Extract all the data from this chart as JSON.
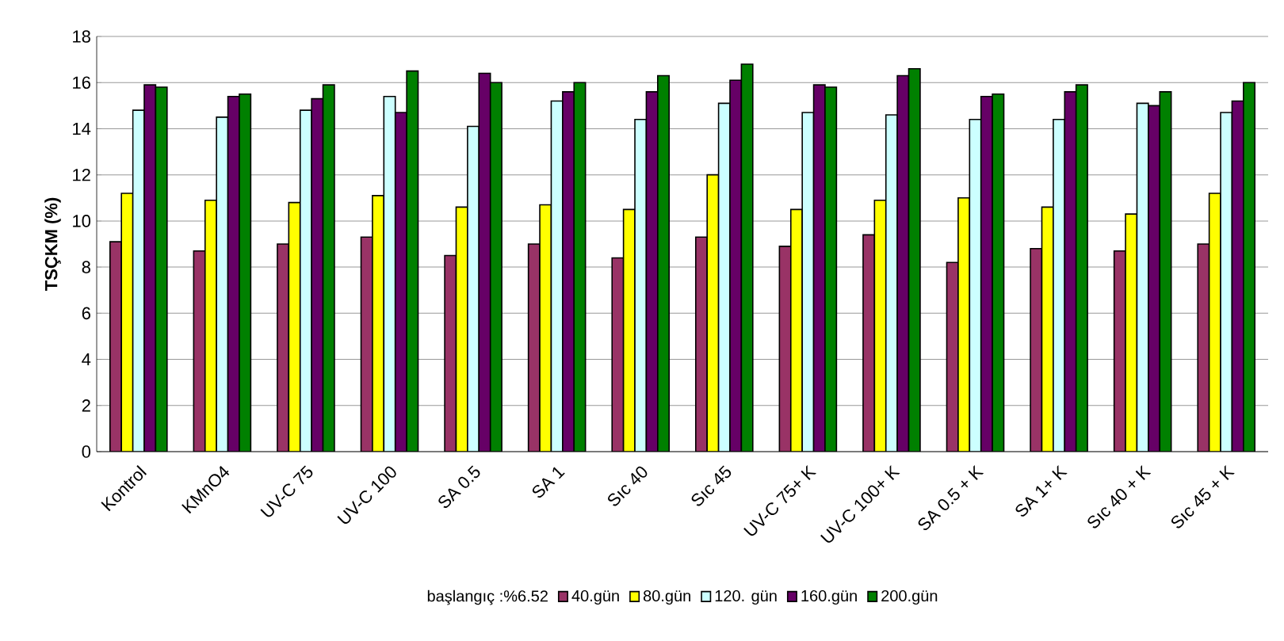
{
  "chart_data": {
    "type": "bar",
    "ylabel": "TSÇKM (%)",
    "legend_title": "başlangıç :%6.52",
    "categories": [
      "Kontrol",
      "KMnO4",
      "UV-C 75",
      "UV-C 100",
      "SA 0.5",
      "SA 1",
      "Sıc 40",
      "Sıc 45",
      "UV-C 75+ K",
      "UV-C 100+ K",
      "SA 0.5 + K",
      "SA 1+ K",
      "Sıc 40 + K",
      "Sıc 45 + K"
    ],
    "series": [
      {
        "name": "40.gün",
        "color": "#993366",
        "values": [
          9.1,
          8.7,
          9.0,
          9.3,
          8.5,
          9.0,
          8.4,
          9.3,
          8.9,
          9.4,
          8.2,
          8.8,
          8.7,
          9.0
        ]
      },
      {
        "name": "80.gün",
        "color": "#ffff00",
        "values": [
          11.2,
          10.9,
          10.8,
          11.1,
          10.6,
          10.7,
          10.5,
          12.0,
          10.5,
          10.9,
          11.0,
          10.6,
          10.3,
          11.2
        ]
      },
      {
        "name": "120. gün",
        "color": "#ccffff",
        "values": [
          14.8,
          14.5,
          14.8,
          15.4,
          14.1,
          15.2,
          14.4,
          15.1,
          14.7,
          14.6,
          14.4,
          14.4,
          15.1,
          14.7
        ]
      },
      {
        "name": "160.gün",
        "color": "#660066",
        "values": [
          15.9,
          15.4,
          15.3,
          14.7,
          16.4,
          15.6,
          15.6,
          16.1,
          15.9,
          16.3,
          15.4,
          15.6,
          15.0,
          15.2
        ]
      },
      {
        "name": "200.gün",
        "color": "#008000",
        "values": [
          15.8,
          15.5,
          15.9,
          16.5,
          16.0,
          16.0,
          16.3,
          16.8,
          15.8,
          16.6,
          15.5,
          15.9,
          15.6,
          16.0
        ]
      }
    ],
    "ylim": [
      0,
      18
    ],
    "yticks": [
      0,
      2,
      4,
      6,
      8,
      10,
      12,
      14,
      16,
      18
    ],
    "grid": "y",
    "legend": "bottom"
  }
}
